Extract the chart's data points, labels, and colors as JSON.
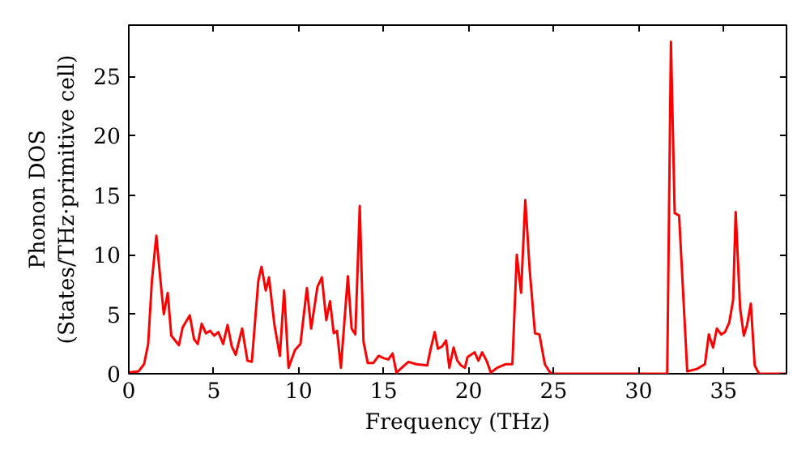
{
  "chart_data": {
    "type": "line",
    "xlabel": "Frequency (THz)",
    "ylabel": "Phonon DOS\n(States/THz·primitive cell)",
    "xlim": [
      0,
      38.7
    ],
    "ylim": [
      0,
      29.3
    ],
    "xticks": [
      0,
      5,
      10,
      15,
      20,
      25,
      30,
      35
    ],
    "yticks": [
      0,
      5,
      10,
      15,
      20,
      25
    ],
    "grid": false,
    "marker": "none",
    "line_style": "solid",
    "series": [
      {
        "color": "#ff0000",
        "x": [
          0,
          0.57,
          0.9,
          1.14,
          1.36,
          1.62,
          1.84,
          2.06,
          2.29,
          2.5,
          2.95,
          3.17,
          3.59,
          3.84,
          4.06,
          4.29,
          4.54,
          4.79,
          5.02,
          5.27,
          5.55,
          5.81,
          6.06,
          6.29,
          6.67,
          6.98,
          7.24,
          7.62,
          7.81,
          8.06,
          8.25,
          8.57,
          8.89,
          9.14,
          9.4,
          9.78,
          10.1,
          10.48,
          10.73,
          11.1,
          11.36,
          11.62,
          11.84,
          12.06,
          12.25,
          12.48,
          12.89,
          13.11,
          13.33,
          13.59,
          13.81,
          14.06,
          14.38,
          14.7,
          15.01,
          15.27,
          15.52,
          15.75,
          16.06,
          16.45,
          16.92,
          17.56,
          17.75,
          18.0,
          18.19,
          18.44,
          18.67,
          18.86,
          19.11,
          19.33,
          19.55,
          19.78,
          19.93,
          20.35,
          20.57,
          20.79,
          21.05,
          21.3,
          21.68,
          22.16,
          22.57,
          22.83,
          23.08,
          23.33,
          23.59,
          23.9,
          24.16,
          24.48,
          24.79,
          25.0,
          31.68,
          31.9,
          32.12,
          32.38,
          32.86,
          33.43,
          33.9,
          34.13,
          34.38,
          34.6,
          34.86,
          35.08,
          35.33,
          35.56,
          35.71,
          35.97,
          36.19,
          36.38,
          36.6,
          36.83,
          37.08,
          38.7
        ],
        "values": [
          0.1,
          0.2,
          0.8,
          2.5,
          7.8,
          11.6,
          8.2,
          5,
          6.8,
          3.2,
          2.4,
          3.9,
          4.9,
          2.9,
          2.5,
          4.2,
          3.4,
          3.6,
          3.2,
          3.5,
          2.5,
          4.1,
          2.3,
          1.6,
          3.8,
          1.1,
          1.0,
          7.8,
          9.0,
          7.0,
          8.1,
          4.1,
          1.5,
          7.0,
          0.5,
          2.0,
          2.5,
          7.2,
          3.8,
          7.3,
          8.1,
          4.5,
          6.1,
          3.4,
          3.6,
          0.5,
          8.2,
          3.8,
          3.3,
          14.1,
          2.7,
          0.9,
          0.9,
          1.5,
          1.3,
          1.2,
          1.7,
          0.1,
          0.5,
          1.0,
          0.8,
          0.7,
          2.0,
          3.5,
          2.1,
          2.3,
          2.8,
          0.5,
          2.2,
          1.1,
          0.7,
          0.5,
          1.4,
          1.8,
          1.1,
          1.8,
          1.1,
          0.1,
          0.5,
          0.8,
          0.8,
          10.0,
          6.8,
          14.6,
          8.7,
          3.4,
          3.3,
          0.8,
          0.1,
          0,
          0,
          27.9,
          13.5,
          13.3,
          0.2,
          0.4,
          0.8,
          3.3,
          2.2,
          3.8,
          3.3,
          3.5,
          4.3,
          6.2,
          13.6,
          5.5,
          3.2,
          4.1,
          5.9,
          0.7,
          0,
          0
        ]
      }
    ]
  }
}
